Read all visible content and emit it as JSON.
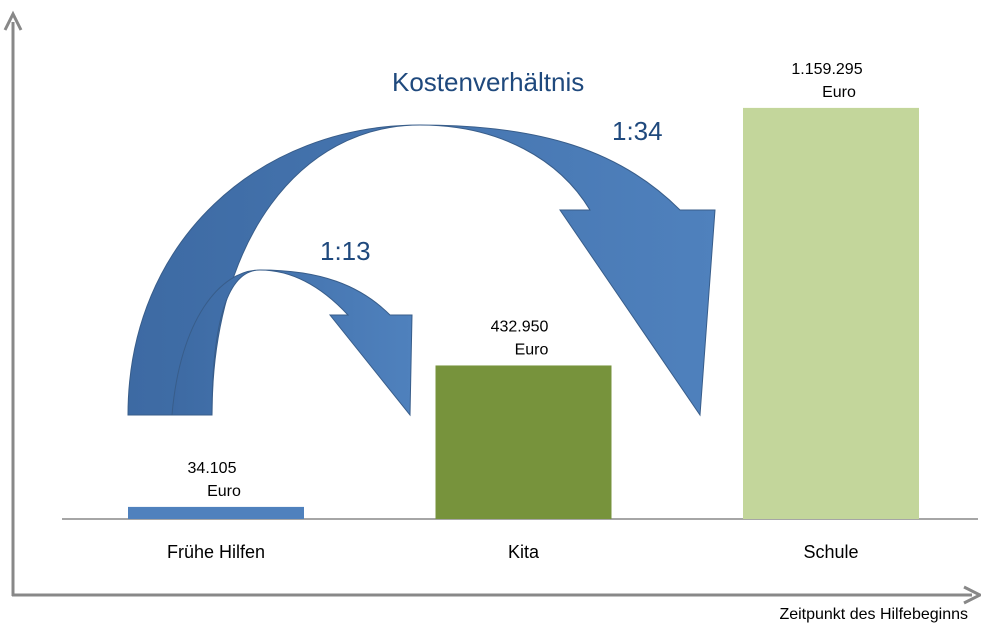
{
  "chart_data": {
    "type": "bar",
    "title": "Kostenverhältnis",
    "annotations": [
      "1:13",
      "1:34"
    ],
    "x_label": "Zeitpunkt des Hilfebeginns",
    "categories": [
      "Frühe Hilfen",
      "Kita",
      "Schule"
    ],
    "values": [
      34105,
      432950,
      1159295
    ],
    "value_labels": [
      [
        "34.105",
        "Euro"
      ],
      [
        "432.950",
        "Euro"
      ],
      [
        "1.159.295",
        "Euro"
      ]
    ],
    "colors": [
      "#4f81bd",
      "#77933c",
      "#c3d69b"
    ],
    "ylim": [
      0,
      1300000
    ]
  }
}
